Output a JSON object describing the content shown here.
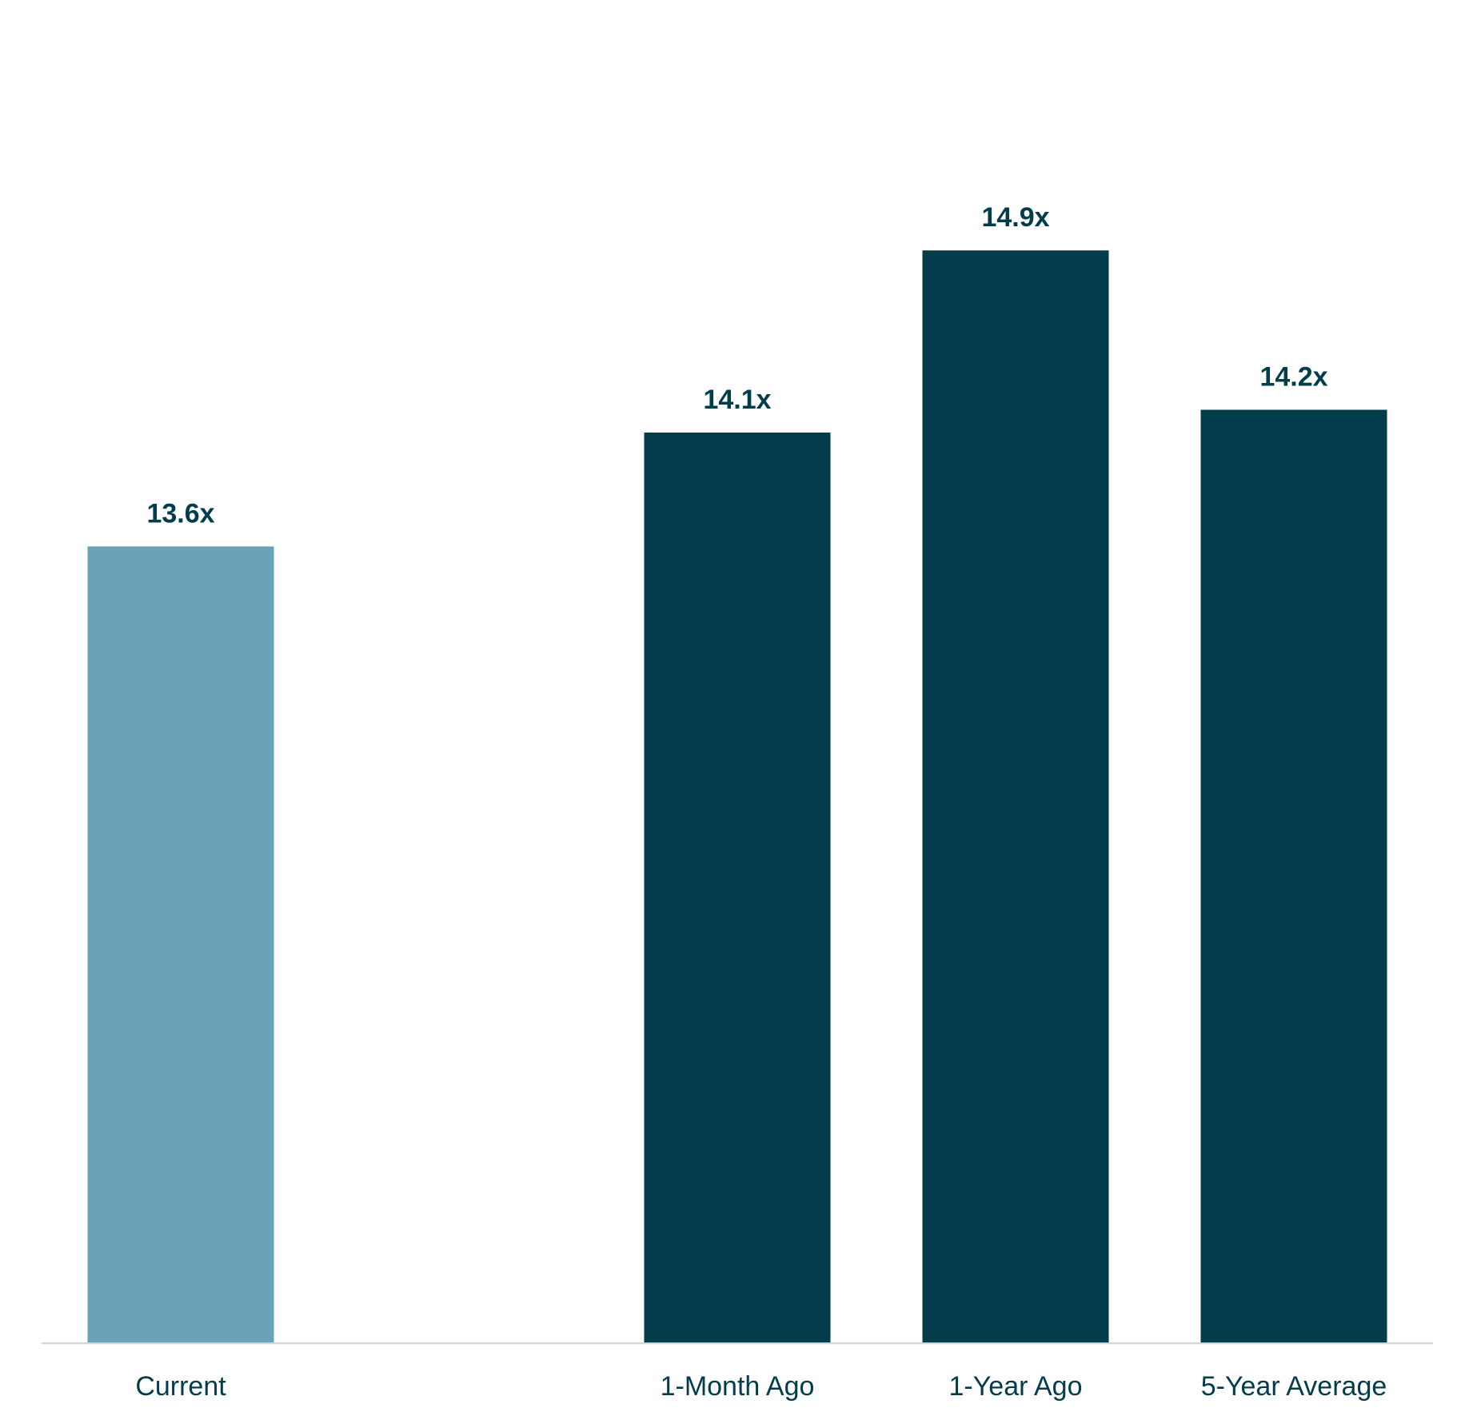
{
  "chart_data": {
    "type": "bar",
    "categories": [
      "Current",
      "",
      "1-Month Ago",
      "1-Year Ago",
      "5-Year Average"
    ],
    "values": [
      13.6,
      null,
      14.1,
      14.9,
      14.2
    ],
    "data_labels": [
      "13.6x",
      "",
      "14.1x",
      "14.9x",
      "14.2x"
    ],
    "ylim": [
      10.1,
      16.0
    ],
    "grid": false,
    "legend": "none",
    "colors": {
      "highlight_bar": "#6aa2b8",
      "bar": "#033c4b",
      "label_text": "#033c4b",
      "axis_line": "#d0d4d8"
    }
  }
}
